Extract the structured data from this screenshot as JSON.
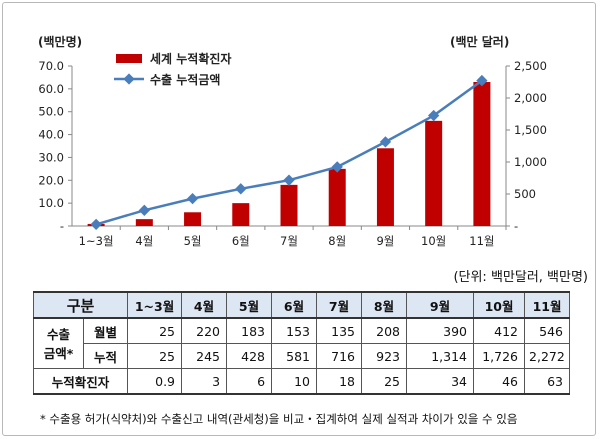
{
  "chart_data": {
    "type": "bar+line",
    "categories": [
      "1~3월",
      "4월",
      "5월",
      "6월",
      "7월",
      "8월",
      "9월",
      "10월",
      "11월"
    ],
    "series": [
      {
        "name": "세계 누적확진자",
        "type": "bar",
        "axis": "left",
        "color": "#c00000",
        "values": [
          0.9,
          3,
          6,
          10,
          18,
          25,
          34,
          46,
          63
        ]
      },
      {
        "name": "수출 누적금액",
        "type": "line",
        "axis": "right",
        "color": "#4a7ebb",
        "values": [
          25,
          245,
          428,
          581,
          716,
          923,
          1314,
          1726,
          2272
        ]
      }
    ],
    "y_left": {
      "label": "(백만명)",
      "ticks": [
        "-",
        "10.0",
        "20.0",
        "30.0",
        "40.0",
        "50.0",
        "60.0",
        "70.0"
      ],
      "lim": [
        0,
        70
      ]
    },
    "y_right": {
      "label": "(백만 달러)",
      "ticks": [
        "-",
        "500",
        "1,000",
        "1,500",
        "2,000",
        "2,500"
      ],
      "lim": [
        0,
        2500
      ]
    },
    "legend_position": "top-left"
  },
  "unit_note": "(단위: 백만달러, 백만명)",
  "table": {
    "corner": "구분",
    "headers": [
      "1~3월",
      "4월",
      "5월",
      "6월",
      "7월",
      "8월",
      "9월",
      "10월",
      "11월"
    ],
    "group_label": "수출\n금액*",
    "rows": [
      {
        "label": "월별",
        "values": [
          "25",
          "220",
          "183",
          "153",
          "135",
          "208",
          "390",
          "412",
          "546"
        ]
      },
      {
        "label": "누적",
        "values": [
          "25",
          "245",
          "428",
          "581",
          "716",
          "923",
          "1,314",
          "1,726",
          "2,272"
        ]
      },
      {
        "label": "누적확진자",
        "values": [
          "0.9",
          "3",
          "6",
          "10",
          "18",
          "25",
          "34",
          "46",
          "63"
        ]
      }
    ]
  },
  "footnote": "* 수출용 허가(식약처)와 수출신고 내역(관세청)을 비교・집계하여 실제 실적과 차이가 있을 수 있음"
}
